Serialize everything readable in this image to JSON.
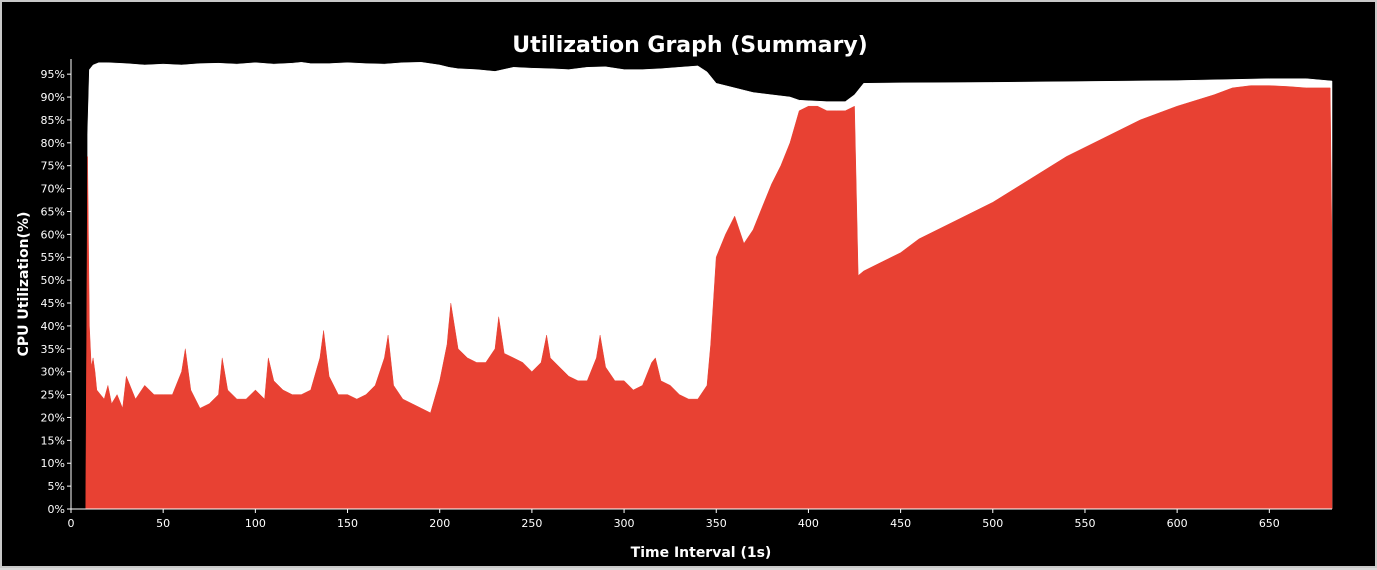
{
  "chart_data": {
    "type": "area",
    "title": "Utilization Graph (Summary)",
    "xlabel": "Time Interval (1s)",
    "ylabel": "CPU Utilization(%)",
    "xlim": [
      0,
      684
    ],
    "ylim": [
      0,
      97
    ],
    "x_ticks": [
      0,
      50,
      100,
      150,
      200,
      250,
      300,
      350,
      400,
      450,
      500,
      550,
      600,
      650
    ],
    "x_tick_labels": [
      "0",
      "50",
      "100",
      "150",
      "200",
      "250",
      "300",
      "350",
      "400",
      "450",
      "500",
      "550",
      "600",
      "650"
    ],
    "y_ticks": [
      0,
      5,
      10,
      15,
      20,
      25,
      30,
      35,
      40,
      45,
      50,
      55,
      60,
      65,
      70,
      75,
      80,
      85,
      90,
      95
    ],
    "y_tick_labels": [
      "0%",
      "5%",
      "10%",
      "15%",
      "20%",
      "25%",
      "30%",
      "35%",
      "40%",
      "45%",
      "50%",
      "55%",
      "60%",
      "65%",
      "70%",
      "75%",
      "80%",
      "85%",
      "90%",
      "95%"
    ],
    "grid": false,
    "legend": "none",
    "colors": {
      "background": "#000000",
      "plot_area": "#ffffff",
      "lower_series": "#e84133",
      "text": "#ffffff"
    },
    "series": [
      {
        "color": "#ffffff",
        "x": [
          9,
          10,
          12,
          15,
          20,
          30,
          40,
          50,
          60,
          70,
          80,
          90,
          100,
          110,
          120,
          125,
          130,
          140,
          150,
          160,
          170,
          180,
          190,
          200,
          205,
          210,
          220,
          230,
          240,
          250,
          260,
          270,
          280,
          290,
          300,
          310,
          320,
          330,
          340,
          345,
          350,
          355,
          360,
          365,
          370,
          380,
          390,
          395,
          400,
          410,
          420,
          425,
          430,
          450,
          500,
          550,
          600,
          650,
          670,
          684
        ],
        "values": [
          82,
          96,
          97,
          97.5,
          97.5,
          97.3,
          97,
          97.2,
          97,
          97.3,
          97.4,
          97.2,
          97.5,
          97.2,
          97.4,
          97.6,
          97.3,
          97.3,
          97.5,
          97.3,
          97.2,
          97.5,
          97.6,
          97,
          96.5,
          96.2,
          96,
          95.6,
          96.5,
          96.3,
          96.2,
          96,
          96.5,
          96.6,
          96,
          96,
          96.2,
          96.5,
          96.8,
          95.5,
          93,
          92.5,
          92,
          91.5,
          91,
          90.5,
          90,
          89.3,
          89.2,
          89,
          89,
          90.5,
          93,
          93.1,
          93.2,
          93.4,
          93.6,
          94,
          94,
          93.5
        ]
      },
      {
        "color": "#e84133",
        "x": [
          8,
          9,
          10,
          11,
          12,
          13,
          14,
          16,
          18,
          20,
          22,
          25,
          28,
          30,
          35,
          40,
          45,
          50,
          55,
          60,
          62,
          65,
          70,
          75,
          80,
          82,
          85,
          90,
          95,
          100,
          105,
          107,
          110,
          115,
          120,
          125,
          130,
          135,
          137,
          140,
          145,
          150,
          155,
          160,
          165,
          170,
          172,
          175,
          180,
          185,
          190,
          195,
          200,
          204,
          206,
          210,
          215,
          220,
          225,
          230,
          232,
          235,
          240,
          245,
          250,
          255,
          258,
          260,
          265,
          270,
          275,
          280,
          285,
          287,
          290,
          295,
          300,
          305,
          310,
          315,
          317,
          320,
          325,
          330,
          335,
          340,
          345,
          347,
          350,
          355,
          360,
          365,
          370,
          375,
          380,
          385,
          390,
          395,
          400,
          405,
          410,
          415,
          420,
          425,
          427,
          430,
          440,
          450,
          460,
          480,
          500,
          520,
          540,
          560,
          580,
          600,
          620,
          630,
          640,
          650,
          660,
          670,
          683,
          684
        ],
        "values": [
          0,
          77,
          40,
          31,
          33,
          30,
          26,
          25,
          24,
          27,
          23,
          25,
          22,
          29,
          24,
          27,
          25,
          25,
          25,
          30,
          35,
          26,
          22,
          23,
          25,
          33,
          26,
          24,
          24,
          26,
          24,
          33,
          28,
          26,
          25,
          25,
          26,
          33,
          39,
          29,
          25,
          25,
          24,
          25,
          27,
          33,
          38,
          27,
          24,
          23,
          22,
          21,
          28,
          36,
          45,
          35,
          33,
          32,
          32,
          35,
          42,
          34,
          33,
          32,
          30,
          32,
          38,
          33,
          31,
          29,
          28,
          28,
          33,
          38,
          31,
          28,
          28,
          26,
          27,
          32,
          33,
          28,
          27,
          25,
          24,
          24,
          27,
          36,
          55,
          60,
          64,
          58,
          61,
          66,
          71,
          75,
          80,
          87,
          88,
          88,
          87,
          87,
          87,
          88,
          51,
          52,
          54,
          56,
          59,
          63,
          67,
          72,
          77,
          81,
          85,
          88,
          90.5,
          92,
          92.5,
          92.5,
          92.3,
          92,
          92,
          56
        ]
      }
    ]
  }
}
